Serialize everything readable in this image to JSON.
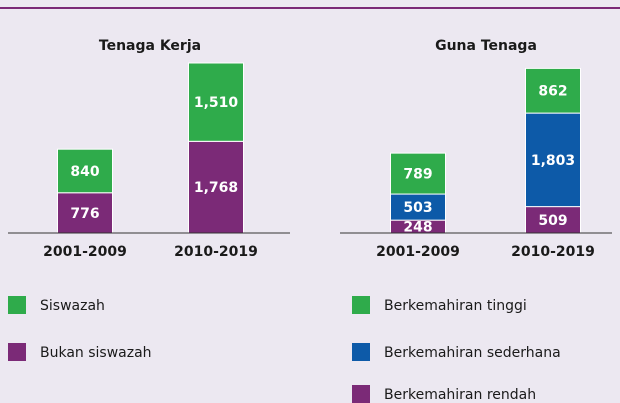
{
  "chart_data": [
    {
      "type": "stacked_bar",
      "title": "Tenaga Kerja",
      "categories": [
        "2001-2009",
        "2010-2019"
      ],
      "series": [
        {
          "name": "Siswazah",
          "color": "#2fab4b",
          "values": [
            840,
            1510
          ],
          "value_labels": [
            "840",
            "1,510"
          ]
        },
        {
          "name": "Bukan siswazah",
          "color": "#7b2a77",
          "values": [
            776,
            1768
          ],
          "value_labels": [
            "776",
            "1,768"
          ]
        }
      ]
    },
    {
      "type": "stacked_bar",
      "title": "Guna Tenaga",
      "categories": [
        "2001-2009",
        "2010-2019"
      ],
      "series": [
        {
          "name": "Berkemahiran tinggi",
          "color": "#2fab4b",
          "values": [
            789,
            862
          ]
        },
        {
          "name": "Berkemahiran sederhana",
          "color": "#0d5aa8",
          "values": [
            503,
            1803
          ],
          "value_labels": [
            "503",
            "1,803"
          ]
        },
        {
          "name": "Berkemahiran rendah",
          "color": "#7b2a77",
          "values": [
            248,
            509
          ]
        }
      ]
    }
  ]
}
